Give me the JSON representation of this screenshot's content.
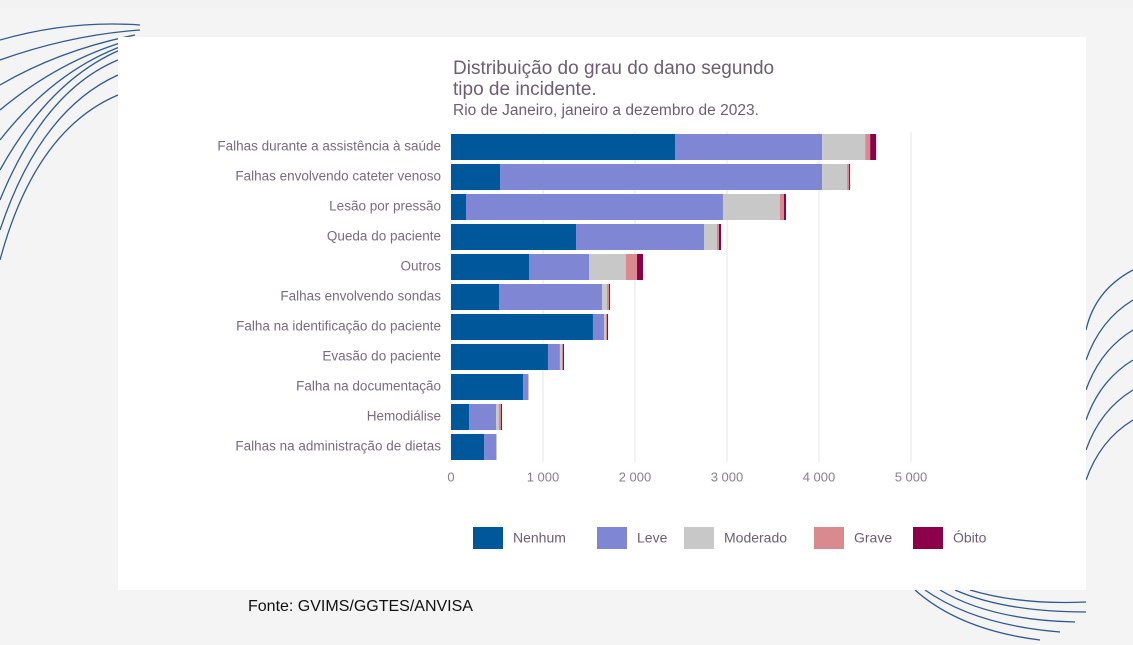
{
  "chart_data": {
    "type": "stacked-bar-horizontal",
    "title": "Distribuição do grau do dano segundo tipo de incidente.",
    "subtitle": "Rio de Janeiro, janeiro a dezembro de 2023.",
    "source": "Fonte: GVIMS/GGTES/ANVISA",
    "categories": [
      "Falhas durante a assistência à saúde",
      "Falhas envolvendo cateter venoso",
      "Lesão por pressão",
      "Queda do paciente",
      "Outros",
      "Falhas envolvendo sondas",
      "Falha na identificação do paciente",
      "Evasão do paciente",
      "Falha na documentação",
      "Hemodiálise",
      "Falhas na administração de dietas"
    ],
    "series": [
      {
        "name": "Nenhum",
        "color": "#00589a",
        "values": [
          2435,
          533,
          163,
          1359,
          848,
          522,
          1543,
          1054,
          783,
          196,
          359
        ]
      },
      {
        "name": "Leve",
        "color": "#7f86d4",
        "values": [
          1600,
          3500,
          2793,
          1391,
          652,
          1120,
          120,
          130,
          54,
          293,
          130
        ]
      },
      {
        "name": "Moderado",
        "color": "#c8c8c8",
        "values": [
          467,
          272,
          620,
          141,
          402,
          54,
          22,
          22,
          11,
          33,
          11
        ]
      },
      {
        "name": "Grave",
        "color": "#d88a8f",
        "values": [
          54,
          22,
          43,
          22,
          120,
          22,
          11,
          11,
          0,
          22,
          0
        ]
      },
      {
        "name": "Óbito",
        "color": "#8b0049",
        "values": [
          65,
          11,
          22,
          22,
          65,
          11,
          11,
          11,
          0,
          11,
          0
        ]
      }
    ],
    "xlim": [
      0,
      5500
    ],
    "xticks": [
      0,
      {
        "value": 1000,
        "label": "1 000"
      },
      {
        "value": 2000,
        "label": "2 000"
      },
      {
        "value": 3000,
        "label": "3 000"
      },
      {
        "value": 4000,
        "label": "4 000"
      },
      {
        "value": 5000,
        "label": "5 000"
      }
    ],
    "grid": true,
    "legend": "bottom"
  }
}
